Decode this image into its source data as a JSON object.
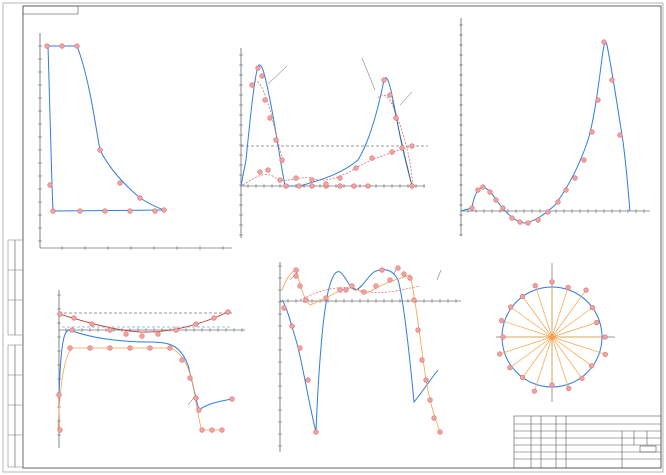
{
  "sheet": {
    "stamp_text": "",
    "doc_code": "",
    "sheet_name": ""
  },
  "colors": {
    "line": "#2f7de1",
    "marker": "#e06b6b",
    "marker_fill": "#f0a3a3",
    "ray": "#f4a347",
    "dashed": "#333333",
    "frame": "#555555"
  },
  "figures": {
    "pv_diagram": {
      "name": "pressure-volume-diagram"
    },
    "force_diagram": {
      "name": "force-diagram"
    },
    "torque_diagram": {
      "name": "total-torque-diagram"
    },
    "velocity_diagram": {
      "name": "velocity-diagram"
    },
    "accel_diagram": {
      "name": "acceleration-diagram"
    },
    "polar_diagram": {
      "name": "polar-diagram"
    }
  }
}
